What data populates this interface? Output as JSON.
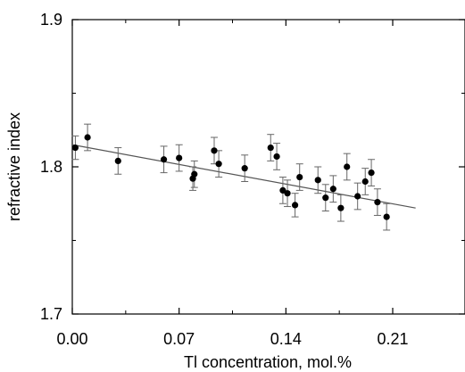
{
  "chart_data": {
    "type": "scatter",
    "title": "",
    "xlabel": "Tl concentration, mol.%",
    "ylabel": "refractive index",
    "xlim": [
      0,
      0.245
    ],
    "ylim": [
      1.7,
      1.9
    ],
    "x_ticks": [
      0.0,
      0.07,
      0.14,
      0.21
    ],
    "x_tick_labels": [
      "0.00",
      "0.07",
      "0.14",
      "0.21"
    ],
    "y_ticks": [
      1.7,
      1.8,
      1.9
    ],
    "y_tick_labels": [
      "1.7",
      "1.8",
      "1.9"
    ],
    "grid": false,
    "series": [
      {
        "points": [
          {
            "x": 0.002,
            "y": 1.813,
            "err": 0.008
          },
          {
            "x": 0.01,
            "y": 1.82,
            "err": 0.009
          },
          {
            "x": 0.03,
            "y": 1.804,
            "err": 0.009
          },
          {
            "x": 0.06,
            "y": 1.805,
            "err": 0.009
          },
          {
            "x": 0.07,
            "y": 1.806,
            "err": 0.009
          },
          {
            "x": 0.079,
            "y": 1.792,
            "err": 0.008
          },
          {
            "x": 0.08,
            "y": 1.795,
            "err": 0.009
          },
          {
            "x": 0.093,
            "y": 1.811,
            "err": 0.009
          },
          {
            "x": 0.096,
            "y": 1.802,
            "err": 0.009
          },
          {
            "x": 0.113,
            "y": 1.799,
            "err": 0.009
          },
          {
            "x": 0.13,
            "y": 1.813,
            "err": 0.009
          },
          {
            "x": 0.134,
            "y": 1.807,
            "err": 0.009
          },
          {
            "x": 0.138,
            "y": 1.784,
            "err": 0.009
          },
          {
            "x": 0.141,
            "y": 1.782,
            "err": 0.009
          },
          {
            "x": 0.146,
            "y": 1.774,
            "err": 0.008
          },
          {
            "x": 0.149,
            "y": 1.793,
            "err": 0.009
          },
          {
            "x": 0.161,
            "y": 1.791,
            "err": 0.009
          },
          {
            "x": 0.166,
            "y": 1.779,
            "err": 0.009
          },
          {
            "x": 0.171,
            "y": 1.785,
            "err": 0.009
          },
          {
            "x": 0.176,
            "y": 1.772,
            "err": 0.009
          },
          {
            "x": 0.18,
            "y": 1.8,
            "err": 0.009
          },
          {
            "x": 0.187,
            "y": 1.78,
            "err": 0.009
          },
          {
            "x": 0.192,
            "y": 1.79,
            "err": 0.009
          },
          {
            "x": 0.196,
            "y": 1.796,
            "err": 0.009
          },
          {
            "x": 0.2,
            "y": 1.776,
            "err": 0.009
          },
          {
            "x": 0.206,
            "y": 1.766,
            "err": 0.009
          }
        ]
      }
    ],
    "fit_line": {
      "x": [
        0.0,
        0.225
      ],
      "y": [
        1.815,
        1.772
      ]
    },
    "colors": {
      "points": "#000000",
      "axis": "#000000",
      "error_bars": "#666666",
      "fit_line": "#555555"
    }
  }
}
